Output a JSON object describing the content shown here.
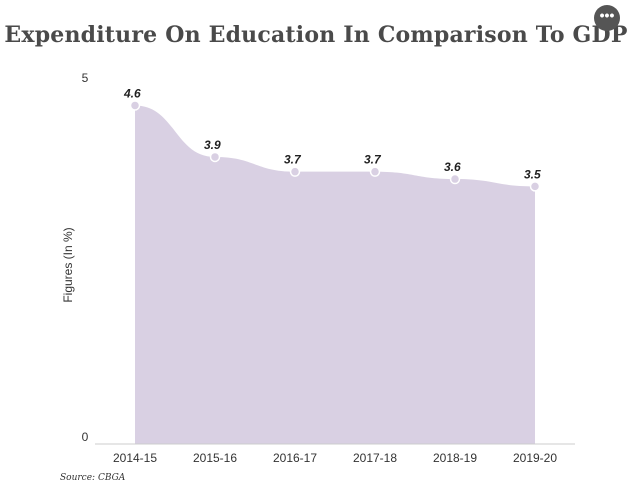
{
  "header": {
    "title": "Expenditure On Education In Comparison To GDP",
    "more_icon": "ellipsis-icon",
    "more_glyph": "•••"
  },
  "chart_data": {
    "type": "area",
    "title": "Expenditure On Education In Comparison To GDP",
    "xlabel": "",
    "ylabel": "Figures (In %)",
    "categories": [
      "2014-15",
      "2015-16",
      "2016-17",
      "2017-18",
      "2018-19",
      "2019-20"
    ],
    "values": [
      4.6,
      3.9,
      3.7,
      3.7,
      3.6,
      3.5
    ],
    "data_labels": [
      "4.6",
      "3.9",
      "3.7",
      "3.7",
      "3.6",
      "3.5"
    ],
    "ylim": [
      0,
      5
    ],
    "yticks": [
      "0",
      "5"
    ],
    "grid": false,
    "legend": "none",
    "fill_color": "#d9d0e3",
    "marker_color": "#d9d0e3"
  },
  "footer": {
    "source": "Source: CBGA"
  }
}
